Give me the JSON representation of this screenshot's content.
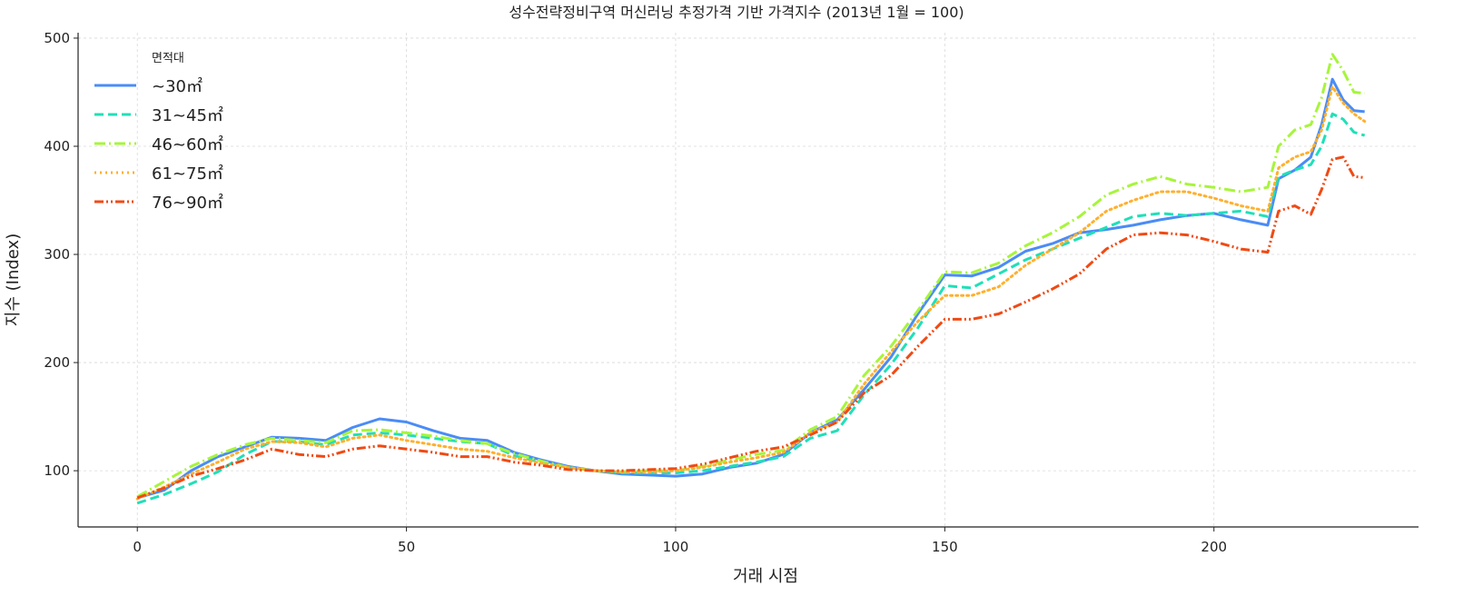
{
  "chart_data": {
    "type": "line",
    "title": "성수전략정비구역 머신러닝 추정가격 기반 가격지수 (2013년 1월 = 100)",
    "xlabel": "거래 시점",
    "ylabel": "지수 (Index)",
    "xlim": [
      -11,
      238
    ],
    "ylim": [
      48,
      505
    ],
    "xticks": [
      0,
      50,
      100,
      150,
      200
    ],
    "yticks": [
      100,
      200,
      300,
      400,
      500
    ],
    "grid": true,
    "legend": {
      "title": "면적대",
      "placement": "top-left"
    },
    "x": [
      0,
      5,
      10,
      15,
      20,
      25,
      30,
      35,
      40,
      45,
      50,
      55,
      60,
      65,
      70,
      75,
      80,
      85,
      90,
      95,
      100,
      105,
      110,
      115,
      120,
      125,
      130,
      135,
      140,
      145,
      150,
      155,
      160,
      165,
      170,
      175,
      180,
      185,
      190,
      195,
      200,
      205,
      210,
      212,
      215,
      218,
      220,
      222,
      224,
      226,
      228
    ],
    "series": [
      {
        "name": "~30㎡",
        "color": "#4a8cf7",
        "dash": "solid",
        "values": [
          75,
          82,
          100,
          113,
          122,
          131,
          130,
          128,
          140,
          148,
          145,
          137,
          130,
          128,
          117,
          110,
          104,
          100,
          97,
          96,
          95,
          97,
          103,
          107,
          115,
          135,
          147,
          175,
          205,
          245,
          281,
          280,
          288,
          303,
          310,
          320,
          323,
          327,
          332,
          336,
          338,
          332,
          327,
          370,
          378,
          390,
          420,
          462,
          443,
          433,
          432
        ]
      },
      {
        "name": "31~45㎡",
        "color": "#1fe0b8",
        "dash": "dashed",
        "values": [
          70,
          78,
          88,
          99,
          115,
          127,
          127,
          124,
          133,
          135,
          133,
          130,
          127,
          125,
          114,
          108,
          103,
          100,
          98,
          98,
          98,
          100,
          104,
          108,
          113,
          130,
          137,
          170,
          198,
          232,
          271,
          269,
          282,
          295,
          305,
          315,
          325,
          335,
          338,
          336,
          338,
          340,
          335,
          372,
          378,
          383,
          400,
          430,
          425,
          413,
          410
        ]
      },
      {
        "name": "46~60㎡",
        "color": "#a7f53a",
        "dash": "dashdot",
        "values": [
          76,
          90,
          104,
          115,
          124,
          130,
          128,
          126,
          137,
          138,
          135,
          132,
          128,
          125,
          116,
          109,
          103,
          100,
          99,
          100,
          100,
          104,
          110,
          115,
          119,
          138,
          150,
          188,
          215,
          248,
          284,
          283,
          292,
          308,
          320,
          335,
          355,
          365,
          372,
          365,
          362,
          358,
          362,
          400,
          415,
          420,
          445,
          485,
          470,
          450,
          449
        ]
      },
      {
        "name": "61~75㎡",
        "color": "#ffb02e",
        "dash": "dotted",
        "values": [
          74,
          85,
          97,
          108,
          120,
          127,
          126,
          122,
          130,
          133,
          128,
          124,
          120,
          118,
          112,
          107,
          103,
          100,
          99,
          99,
          100,
          103,
          108,
          112,
          117,
          135,
          145,
          180,
          210,
          238,
          262,
          262,
          270,
          290,
          305,
          320,
          340,
          350,
          358,
          358,
          352,
          345,
          340,
          380,
          390,
          395,
          415,
          455,
          440,
          430,
          423
        ]
      },
      {
        "name": "76~90㎡",
        "color": "#f04a14",
        "dash": "dashdotdot",
        "values": [
          75,
          84,
          95,
          102,
          110,
          120,
          115,
          113,
          120,
          123,
          120,
          117,
          113,
          113,
          108,
          105,
          101,
          100,
          100,
          101,
          102,
          106,
          112,
          118,
          122,
          133,
          145,
          172,
          188,
          215,
          240,
          240,
          245,
          256,
          268,
          282,
          305,
          318,
          320,
          318,
          312,
          305,
          302,
          340,
          345,
          337,
          360,
          388,
          390,
          372,
          371
        ]
      }
    ]
  }
}
